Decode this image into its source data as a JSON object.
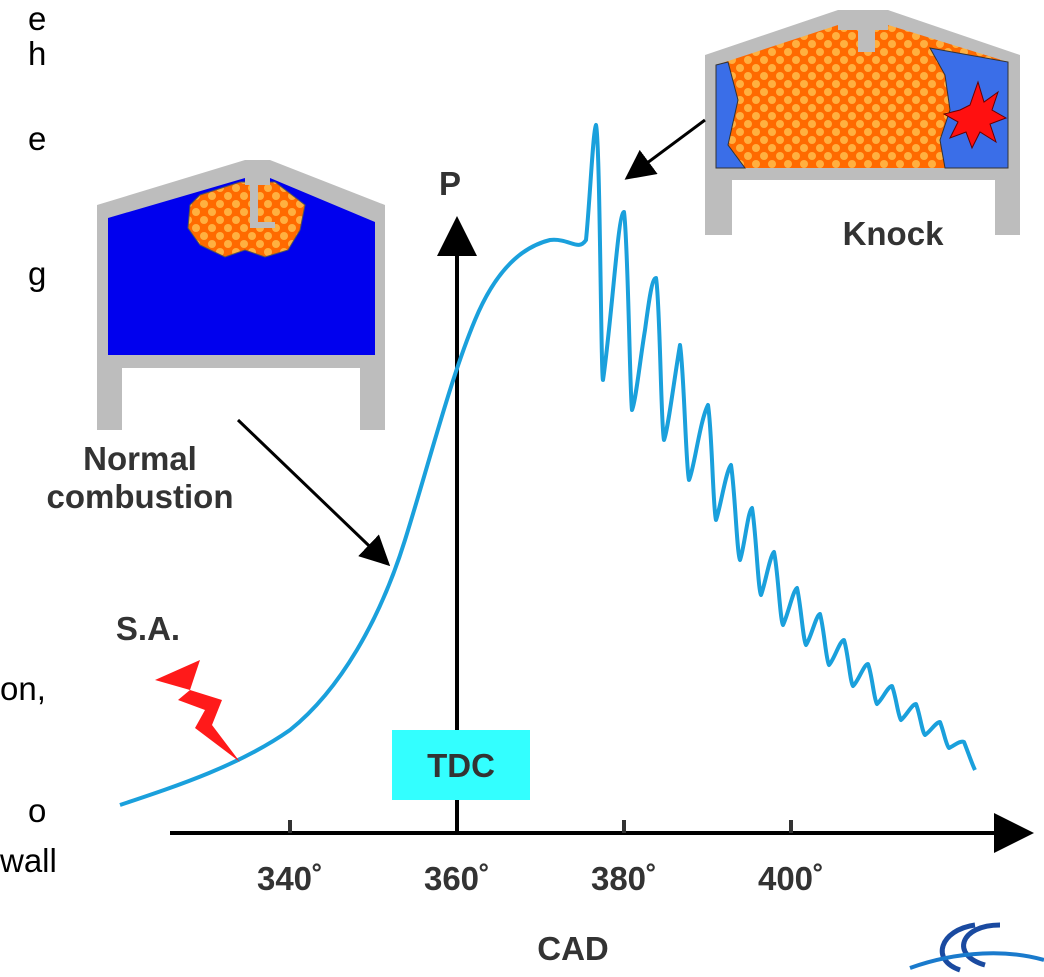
{
  "left_text": [
    "e",
    "h",
    "e",
    "g",
    "on,",
    "o",
    "wall"
  ],
  "labels": {
    "pressure": "P",
    "knock": "Knock",
    "normal": [
      "Normal",
      "combustion"
    ],
    "spark": "S.A.",
    "tdc": "TDC",
    "x_axis": "CAD"
  },
  "ticks": [
    "340˚",
    "360˚",
    "380˚",
    "400˚"
  ]
}
